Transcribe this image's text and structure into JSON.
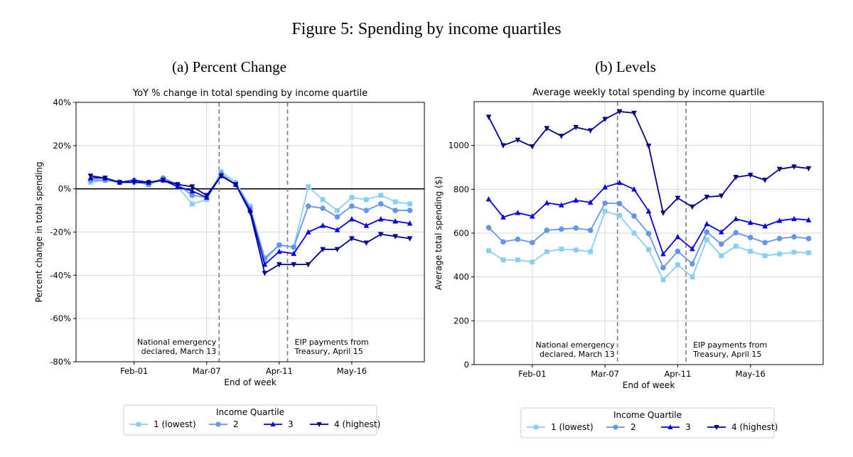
{
  "figure": {
    "title": "Figure 5: Spending by income quartiles"
  },
  "panels": [
    {
      "label": "(a) Percent Change"
    },
    {
      "label": "(b) Levels"
    }
  ],
  "colors": {
    "q1": "#87cefa",
    "q2": "#6495ed",
    "q3": "#0000ee",
    "q4": "#00008b",
    "vline": "#808080",
    "grid": "#d9d9d9"
  },
  "chart_data": [
    {
      "type": "line",
      "title": "YoY % change in total spending by income quartile",
      "xlabel": "End of week",
      "ylabel": "Percent change in total spending",
      "ylim": [
        -80,
        40
      ],
      "yticks": [
        -80,
        -60,
        -40,
        -20,
        0,
        20,
        40
      ],
      "ytick_labels": [
        "-80%",
        "-60%",
        "-40%",
        "-20%",
        "0%",
        "20%",
        "40%"
      ],
      "x": [
        "Jan-11",
        "Jan-18",
        "Jan-25",
        "Feb-01",
        "Feb-08",
        "Feb-15",
        "Feb-22",
        "Feb-29",
        "Mar-07",
        "Mar-14",
        "Mar-21",
        "Mar-28",
        "Apr-04",
        "Apr-11",
        "Apr-18",
        "Apr-25",
        "May-02",
        "May-09",
        "May-16",
        "May-23",
        "May-30",
        "Jun-06",
        "Jun-13"
      ],
      "x_range": [
        "Jan-04",
        "Jun-20"
      ],
      "xticks": [
        "Feb-01",
        "Mar-07",
        "Apr-11",
        "May-16"
      ],
      "zero_line": true,
      "grid": true,
      "legend_title": "Income Quartile",
      "legend_position": "bottom-center",
      "annotations": [
        {
          "x": "Mar-13",
          "lines": [
            "National emergency",
            "declared, March 13"
          ]
        },
        {
          "x": "Apr-15",
          "lines": [
            "EIP payments from",
            "Treasury, April 15"
          ]
        }
      ],
      "series": [
        {
          "name": "1 (lowest)",
          "marker": "square",
          "values": [
            3,
            4,
            3,
            3,
            2,
            4,
            1,
            -7,
            -5,
            8,
            3,
            -8,
            -33,
            -26,
            -27,
            1,
            -5,
            -10,
            -4,
            -5,
            -3,
            -6,
            -7
          ]
        },
        {
          "name": "2",
          "marker": "circle",
          "values": [
            4,
            4,
            3,
            4,
            2,
            5,
            2,
            -3,
            -4,
            7,
            2,
            -9,
            -32,
            -26,
            -27,
            -8,
            -9,
            -13,
            -8,
            -10,
            -7,
            -10,
            -10
          ]
        },
        {
          "name": "3",
          "marker": "triangle-up",
          "values": [
            5,
            5,
            3,
            4,
            3,
            4,
            1,
            -1,
            -4,
            6,
            2,
            -10,
            -35,
            -29,
            -30,
            -20,
            -17,
            -19,
            -14,
            -17,
            -14,
            -15,
            -16
          ]
        },
        {
          "name": "4 (highest)",
          "marker": "triangle-down",
          "values": [
            6,
            5,
            3,
            3,
            3,
            4,
            2,
            1,
            -3,
            6,
            2,
            -11,
            -39,
            -35,
            -35,
            -35,
            -28,
            -28,
            -23,
            -25,
            -21,
            -22,
            -23
          ]
        }
      ]
    },
    {
      "type": "line",
      "title": "Average weekly total spending by income quartile",
      "xlabel": "End of week",
      "ylabel": "Average total spending ($)",
      "ylim": [
        0,
        1200
      ],
      "yticks": [
        0,
        200,
        400,
        600,
        800,
        1000
      ],
      "ytick_labels": [
        "0",
        "200",
        "400",
        "600",
        "800",
        "1000"
      ],
      "x": [
        "Jan-11",
        "Jan-18",
        "Jan-25",
        "Feb-01",
        "Feb-08",
        "Feb-15",
        "Feb-22",
        "Feb-29",
        "Mar-07",
        "Mar-14",
        "Mar-21",
        "Mar-28",
        "Apr-04",
        "Apr-11",
        "Apr-18",
        "Apr-25",
        "May-02",
        "May-09",
        "May-16",
        "May-23",
        "May-30",
        "Jun-06",
        "Jun-13"
      ],
      "x_range": [
        "Jan-04",
        "Jun-20"
      ],
      "xticks": [
        "Feb-01",
        "Mar-07",
        "Apr-11",
        "May-16"
      ],
      "zero_line": false,
      "grid": true,
      "legend_title": "Income Quartile",
      "legend_position": "bottom-center",
      "annotations": [
        {
          "x": "Mar-13",
          "lines": [
            "National emergency",
            "declared, March 13"
          ]
        },
        {
          "x": "Apr-15",
          "lines": [
            "EIP payments from",
            "Treasury, April 15"
          ]
        }
      ],
      "series": [
        {
          "name": "1 (lowest)",
          "marker": "square",
          "values": [
            520,
            478,
            478,
            468,
            515,
            527,
            523,
            515,
            700,
            680,
            600,
            525,
            387,
            455,
            400,
            570,
            497,
            540,
            517,
            497,
            505,
            513,
            510
          ]
        },
        {
          "name": "2",
          "marker": "circle",
          "values": [
            625,
            560,
            572,
            557,
            613,
            618,
            623,
            613,
            737,
            735,
            678,
            598,
            442,
            517,
            460,
            605,
            550,
            602,
            580,
            557,
            575,
            583,
            575
          ]
        },
        {
          "name": "3",
          "marker": "triangle-up",
          "values": [
            755,
            673,
            693,
            677,
            738,
            728,
            750,
            740,
            810,
            830,
            800,
            700,
            505,
            583,
            528,
            642,
            605,
            665,
            648,
            632,
            657,
            665,
            660
          ]
        },
        {
          "name": "4 (highest)",
          "marker": "triangle-down",
          "values": [
            1130,
            1000,
            1025,
            995,
            1078,
            1043,
            1083,
            1068,
            1120,
            1155,
            1148,
            998,
            692,
            760,
            720,
            765,
            770,
            855,
            865,
            842,
            892,
            903,
            895
          ]
        }
      ]
    }
  ]
}
